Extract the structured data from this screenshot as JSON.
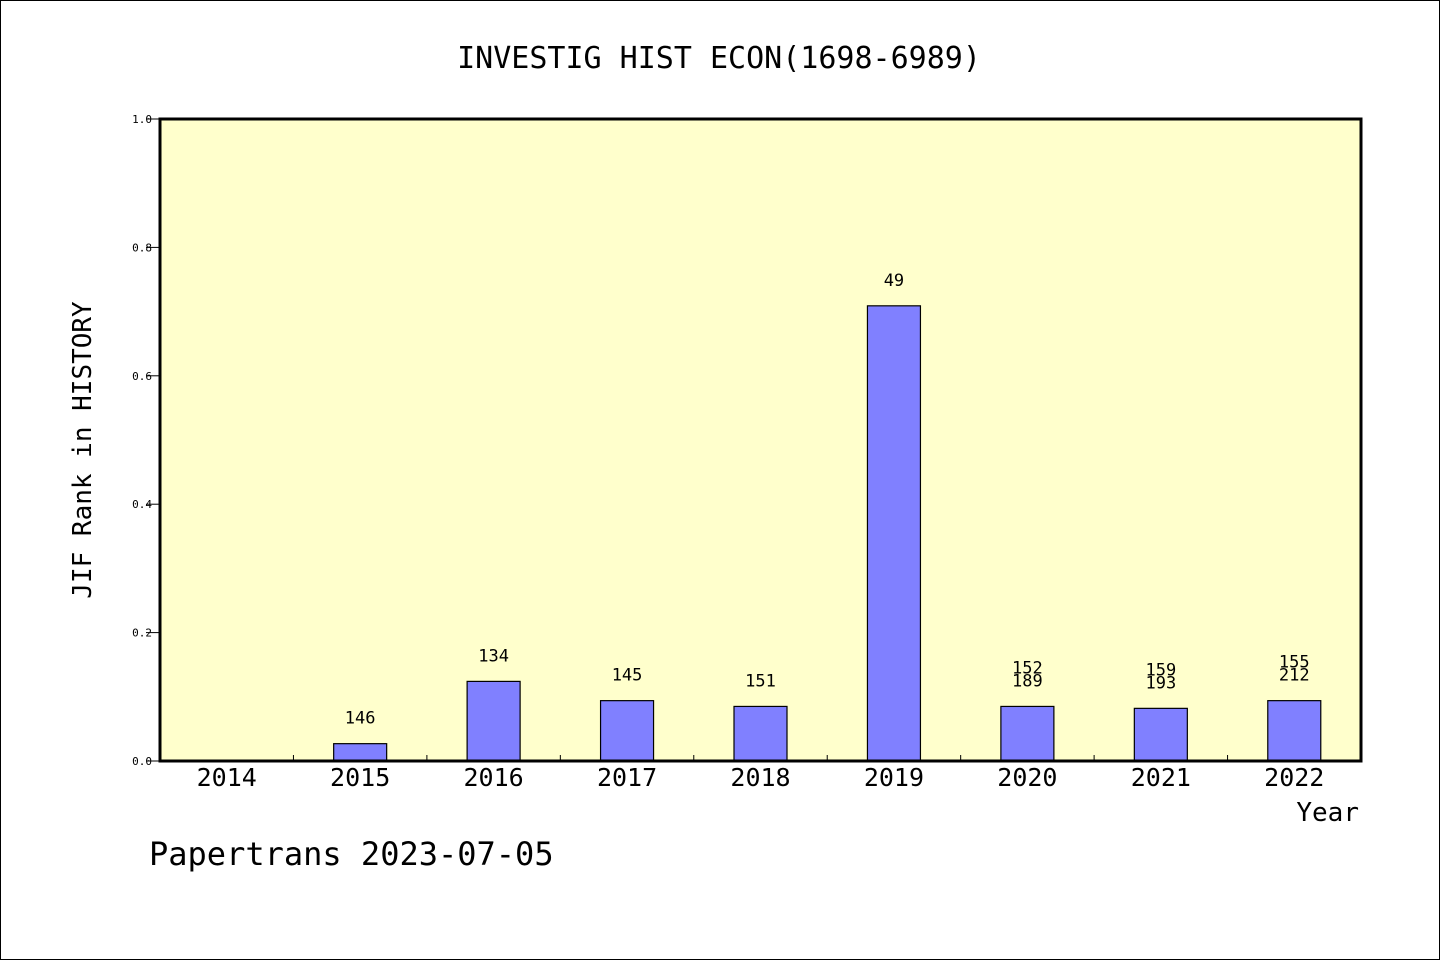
{
  "chart_data": {
    "type": "bar",
    "title": "INVESTIG HIST ECON(1698-6989)",
    "xlabel": "Year",
    "ylabel": "JIF Rank in HISTORY",
    "ylim": [
      0,
      1.0
    ],
    "yticks": [
      "0.0",
      "0.2",
      "0.4",
      "0.6",
      "0.8",
      "1.0"
    ],
    "ytick_values": [
      0,
      0.2,
      0.4,
      0.6,
      0.8,
      1.0
    ],
    "categories": [
      "2014",
      "2015",
      "2016",
      "2017",
      "2018",
      "2019",
      "2020",
      "2021",
      "2022"
    ],
    "values": [
      0,
      0.027,
      0.124,
      0.094,
      0.085,
      0.709,
      0.085,
      0.082,
      0.094
    ],
    "data_labels": [
      [],
      [
        "146"
      ],
      [
        "134"
      ],
      [
        "145"
      ],
      [
        "151"
      ],
      [
        "49"
      ],
      [
        "152",
        "189"
      ],
      [
        "159",
        "193"
      ],
      [
        "155",
        "212"
      ]
    ],
    "grid": false,
    "legend": "none",
    "colors": {
      "bar": "#8080ff",
      "plot_background": "#ffffcc",
      "axis": "#000000"
    }
  },
  "footer": "Papertrans 2023-07-05"
}
